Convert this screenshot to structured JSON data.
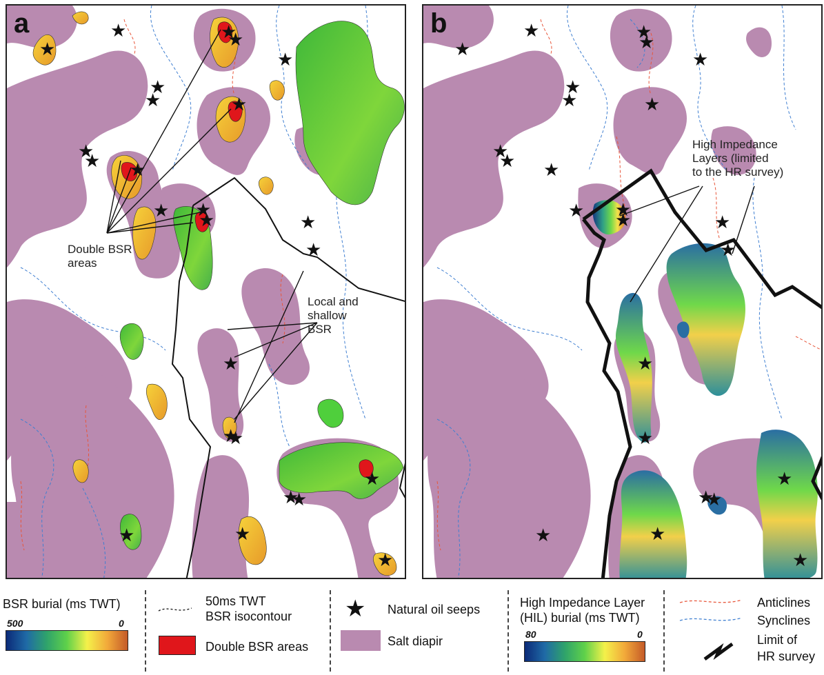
{
  "panels": {
    "a": {
      "letter": "a",
      "annotations": {
        "double_bsr": [
          "Double BSR",
          "areas"
        ],
        "local_bsr": [
          "Local and",
          "shallow",
          "BSR"
        ]
      }
    },
    "b": {
      "letter": "b",
      "annotations": {
        "hil": [
          "High Impedance",
          "Layers (limited",
          "to the HR survey)"
        ]
      }
    }
  },
  "legend": {
    "bsr_burial": {
      "title": "BSR burial (ms TWT)",
      "min_label": "500",
      "max_label": "0"
    },
    "isocontour": {
      "label_line1": "50ms TWT",
      "label_line2": "BSR isocontour"
    },
    "double_bsr": {
      "label": "Double BSR areas",
      "color": "#e0161b"
    },
    "oil_seeps": {
      "label": "Natural oil seeps"
    },
    "salt": {
      "label": "Salt diapir",
      "color": "#b98ab0"
    },
    "hil_burial": {
      "title_line1": "High Impedance Layer",
      "title_line2": "(HIL) burial (ms TWT)",
      "min_label": "80",
      "max_label": "0"
    },
    "anticlines": {
      "label": "Anticlines",
      "color": "#e8563a"
    },
    "synclines": {
      "label": "Synclines",
      "color": "#3f7fd1"
    },
    "hr_limit": {
      "label_line1": "Limit of",
      "label_line2": "HR survey"
    }
  },
  "colors": {
    "salt": "#b98ab0",
    "bsr_green": "#4fcf3c",
    "bsr_orange": "#f0b52a",
    "double_bsr_red": "#e0161b",
    "anticline": "#e8563a",
    "syncline": "#3f7fd1",
    "seep_star": "#111111"
  }
}
